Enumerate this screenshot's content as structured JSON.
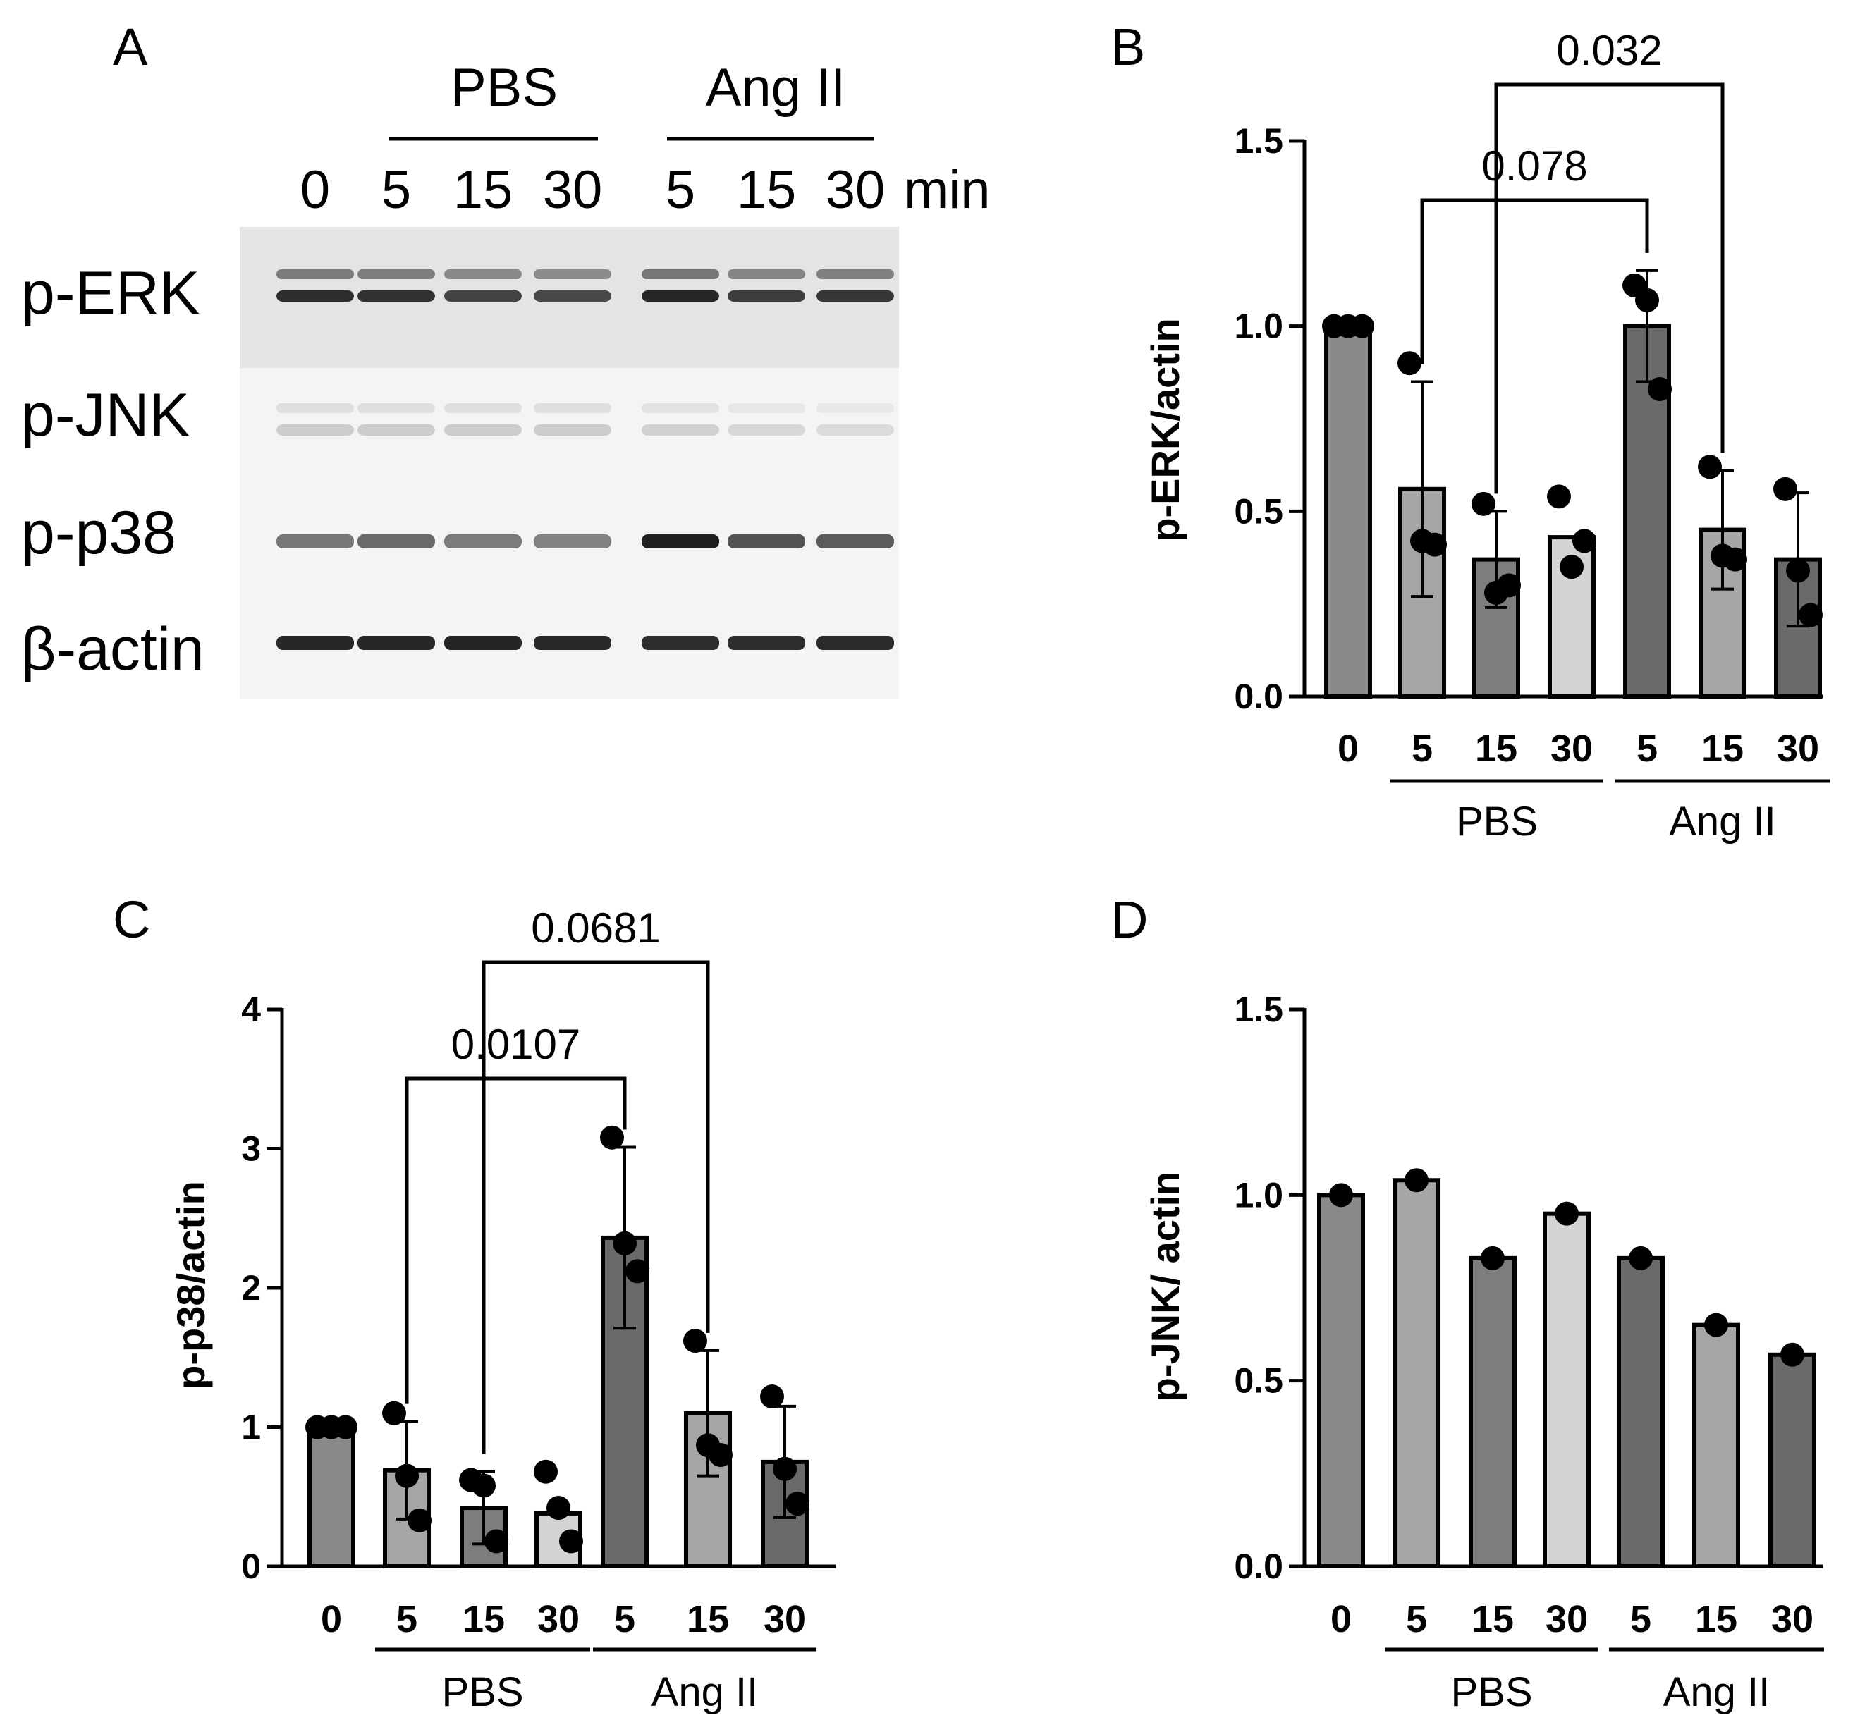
{
  "panel_A": {
    "letter": "A",
    "treatments": [
      "PBS",
      "Ang II"
    ],
    "lane_labels": [
      "0",
      "5",
      "15",
      "30",
      "5",
      "15",
      "30"
    ],
    "unit": "min",
    "rows": [
      {
        "label": "p-ERK",
        "intensity": [
          0.92,
          0.9,
          0.82,
          0.8,
          0.95,
          0.85,
          0.88
        ],
        "doublet": true
      },
      {
        "label": "p-JNK",
        "intensity": [
          0.22,
          0.22,
          0.22,
          0.22,
          0.2,
          0.17,
          0.16
        ],
        "doublet": true
      },
      {
        "label": "p-p38",
        "intensity": [
          0.6,
          0.66,
          0.58,
          0.55,
          0.98,
          0.75,
          0.72
        ],
        "doublet": false
      },
      {
        "label": "β-actin",
        "intensity": [
          0.95,
          0.95,
          0.96,
          0.94,
          0.92,
          0.92,
          0.93
        ],
        "doublet": false
      }
    ],
    "colors": {
      "background_band_1": "#e4e4e4",
      "background_band_2": "#f4f4f4",
      "band": "#111111"
    }
  },
  "chart_data": [
    {
      "panel": "B",
      "type": "bar",
      "ylabel": "p-ERK/actin",
      "ylim": [
        0,
        1.5
      ],
      "yticks": [
        "0.0",
        "0.5",
        "1.0",
        "1.5"
      ],
      "categories": [
        "0",
        "5",
        "15",
        "30",
        "5",
        "15",
        "30"
      ],
      "groups": [
        {
          "label": "PBS",
          "from": 1,
          "to": 3
        },
        {
          "label": "Ang II",
          "from": 4,
          "to": 6
        }
      ],
      "values": [
        1.0,
        0.56,
        0.37,
        0.43,
        1.0,
        0.45,
        0.37
      ],
      "sd": [
        0,
        0.29,
        0.13,
        0.0,
        0.15,
        0.16,
        0.18
      ],
      "points": [
        [
          1.0,
          1.0,
          1.0
        ],
        [
          0.9,
          0.42,
          0.41
        ],
        [
          0.52,
          0.28,
          0.3
        ],
        [
          0.54,
          0.35,
          0.42
        ],
        [
          1.11,
          1.07,
          0.83
        ],
        [
          0.62,
          0.38,
          0.37
        ],
        [
          0.56,
          0.34,
          0.22
        ]
      ],
      "brackets": [
        {
          "from": 1,
          "to": 4,
          "label": "0.078"
        },
        {
          "from": 2,
          "to": 5,
          "label": "0.032"
        }
      ]
    },
    {
      "panel": "C",
      "type": "bar",
      "ylabel": "p-p38/actin",
      "ylim": [
        0,
        4
      ],
      "yticks": [
        "0",
        "1",
        "2",
        "3",
        "4"
      ],
      "categories": [
        "0",
        "5",
        "15",
        "30",
        "5",
        "15",
        "30"
      ],
      "groups": [
        {
          "label": "PBS",
          "from": 1,
          "to": 3
        },
        {
          "label": "Ang II",
          "from": 4,
          "to": 6
        }
      ],
      "values": [
        1.0,
        0.69,
        0.42,
        0.38,
        2.36,
        1.1,
        0.75
      ],
      "sd": [
        0,
        0.35,
        0.26,
        0.0,
        0.65,
        0.45,
        0.4
      ],
      "points": [
        [
          1.0,
          1.0,
          1.0
        ],
        [
          1.1,
          0.65,
          0.33
        ],
        [
          0.62,
          0.58,
          0.18
        ],
        [
          0.68,
          0.42,
          0.18
        ],
        [
          3.08,
          2.32,
          2.12
        ],
        [
          1.62,
          0.87,
          0.8
        ],
        [
          1.22,
          0.7,
          0.45
        ]
      ],
      "brackets": [
        {
          "from": 1,
          "to": 4,
          "label": "0.0107"
        },
        {
          "from": 2,
          "to": 5,
          "label": "0.0681"
        }
      ]
    },
    {
      "panel": "D",
      "type": "bar",
      "ylabel": "p-JNK/ actin",
      "ylim": [
        0,
        1.5
      ],
      "yticks": [
        "0.0",
        "0.5",
        "1.0",
        "1.5"
      ],
      "categories": [
        "0",
        "5",
        "15",
        "30",
        "5",
        "15",
        "30"
      ],
      "groups": [
        {
          "label": "PBS",
          "from": 1,
          "to": 3
        },
        {
          "label": "Ang II",
          "from": 4,
          "to": 6
        }
      ],
      "values": [
        1.0,
        1.04,
        0.83,
        0.95,
        0.83,
        0.65,
        0.57
      ],
      "sd": [
        0,
        0,
        0,
        0,
        0,
        0,
        0
      ],
      "points": [
        [
          1.0
        ],
        [
          1.04
        ],
        [
          0.83
        ],
        [
          0.95
        ],
        [
          0.83
        ],
        [
          0.65
        ],
        [
          0.57
        ]
      ],
      "brackets": []
    }
  ],
  "bar_colors": [
    "#8a8a8a",
    "#a6a6a6",
    "#7d7d7d",
    "#d4d4d4",
    "#6a6a6a",
    "#a6a6a6",
    "#6a6a6a"
  ]
}
